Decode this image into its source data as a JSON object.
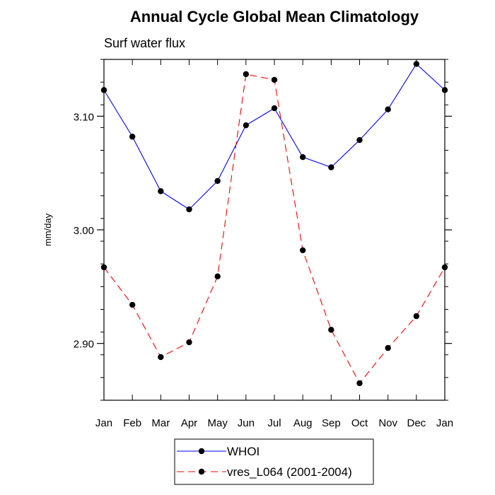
{
  "chart_data": {
    "type": "line",
    "title": "Annual Cycle Global Mean Climatology",
    "subtitle": "Surf water flux",
    "xlabel": "",
    "ylabel": "mm/day",
    "categories": [
      "Jan",
      "Feb",
      "Mar",
      "Apr",
      "May",
      "Jun",
      "Jul",
      "Aug",
      "Sep",
      "Oct",
      "Nov",
      "Dec",
      "Jan"
    ],
    "ylim": [
      2.85,
      3.15
    ],
    "yticks": [
      {
        "value": 2.9,
        "label": "2.90"
      },
      {
        "value": 3.0,
        "label": "3.00"
      },
      {
        "value": 3.1,
        "label": "3.10"
      }
    ],
    "grid": false,
    "legend_position": "bottom",
    "series": [
      {
        "name": "WHOI",
        "color": "#0000ff",
        "dash": "solid",
        "marker": "filled-circle",
        "values": [
          3.123,
          3.082,
          3.034,
          3.018,
          3.043,
          3.092,
          3.107,
          3.064,
          3.055,
          3.079,
          3.106,
          3.146,
          3.123
        ]
      },
      {
        "name": "vres_L064 (2001-2004)",
        "color": "#ff0000",
        "dash": "dashed",
        "marker": "filled-circle",
        "values": [
          2.967,
          2.934,
          2.888,
          2.901,
          2.959,
          3.137,
          3.132,
          2.982,
          2.912,
          2.865,
          2.896,
          2.924,
          2.967
        ]
      }
    ]
  }
}
